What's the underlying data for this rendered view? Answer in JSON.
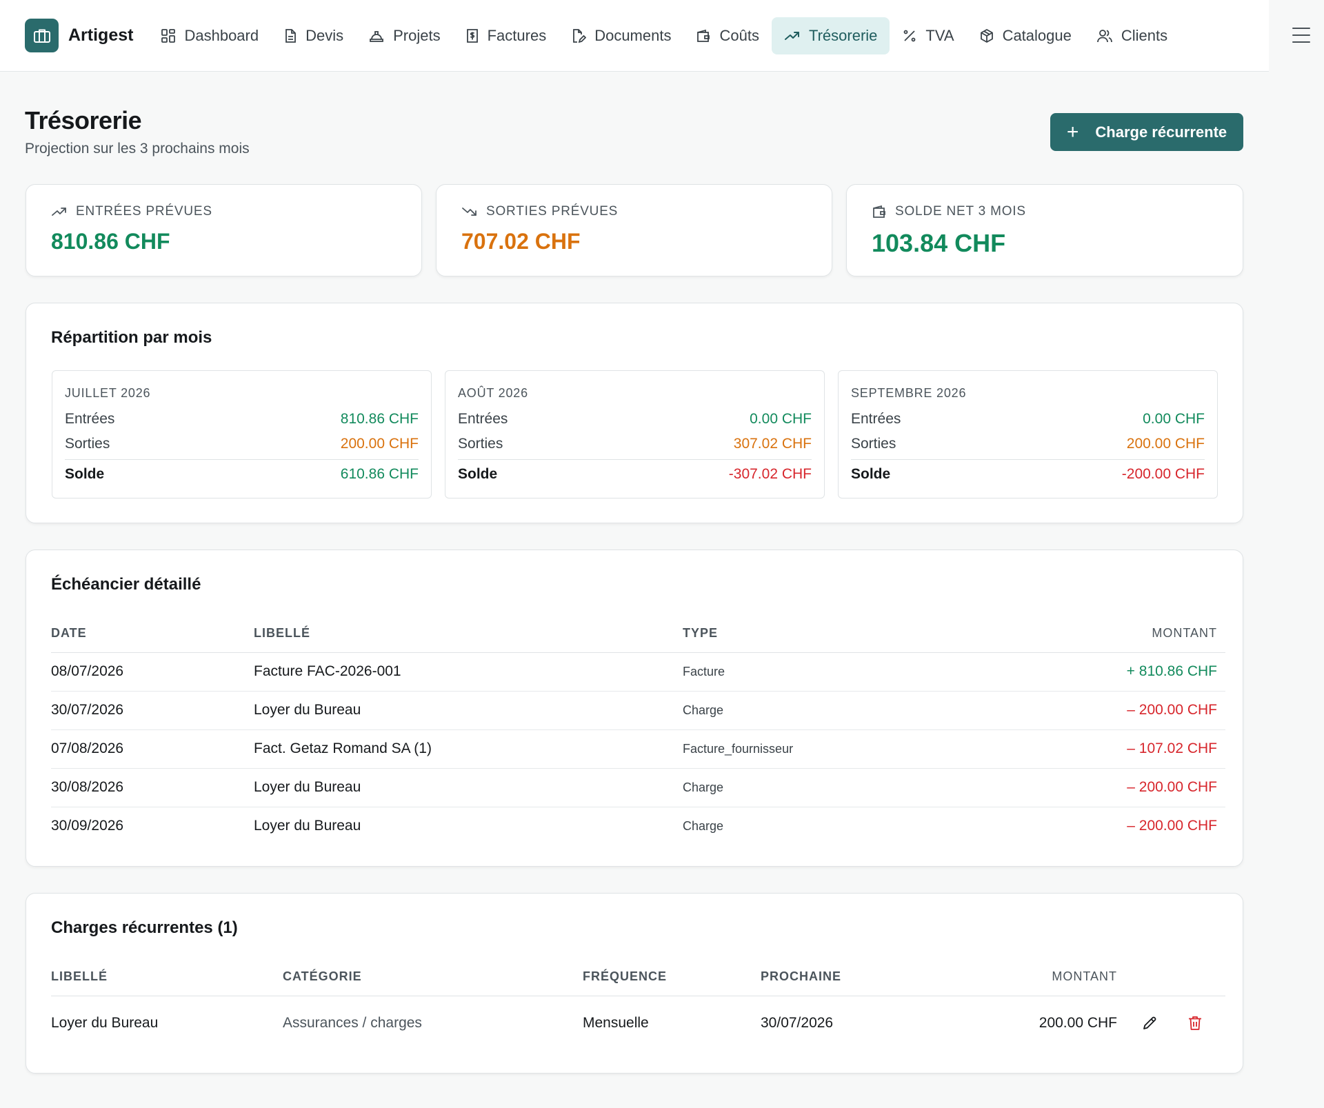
{
  "app": {
    "name": "Artigest",
    "logo_icon": "briefcase-icon"
  },
  "nav": {
    "items": [
      {
        "label": "Dashboard",
        "icon": "dashboard-grid-icon",
        "active": false
      },
      {
        "label": "Devis",
        "icon": "document-icon",
        "active": false
      },
      {
        "label": "Projets",
        "icon": "hard-hat-icon",
        "active": false
      },
      {
        "label": "Factures",
        "icon": "invoice-dollar-icon",
        "active": false
      },
      {
        "label": "Documents",
        "icon": "document-edit-icon",
        "active": false
      },
      {
        "label": "Coûts",
        "icon": "wallet-icon",
        "active": false
      },
      {
        "label": "Trésorerie",
        "icon": "trending-up-icon",
        "active": true
      },
      {
        "label": "TVA",
        "icon": "percent-icon",
        "active": false
      },
      {
        "label": "Catalogue",
        "icon": "package-icon",
        "active": false
      },
      {
        "label": "Clients",
        "icon": "users-icon",
        "active": false
      }
    ],
    "menu_icon": "hamburger-menu-icon"
  },
  "header": {
    "title": "Trésorerie",
    "subtitle": "Projection sur les 3 prochains mois",
    "add_button_label": "Charge récurrente",
    "add_button_icon": "plus-icon"
  },
  "stats": {
    "entrees": {
      "label": "ENTRÉES PRÉVUES",
      "value": "810.86 CHF",
      "icon": "trending-up-icon",
      "color": "#128a5c"
    },
    "sorties": {
      "label": "SORTIES PRÉVUES",
      "value": "707.02 CHF",
      "icon": "trending-down-icon",
      "color": "#d9720e"
    },
    "solde": {
      "label": "SOLDE NET 3 MOIS",
      "value": "103.84 CHF",
      "icon": "wallet-icon",
      "color": "#128a5c"
    }
  },
  "monthly": {
    "title": "Répartition par mois",
    "row_labels": {
      "entrees": "Entrées",
      "sorties": "Sorties",
      "solde": "Solde"
    },
    "months": [
      {
        "name": "JUILLET 2026",
        "entrees": "810.86 CHF",
        "sorties": "200.00 CHF",
        "solde": "610.86 CHF",
        "solde_color": "#128a5c"
      },
      {
        "name": "AOÛT 2026",
        "entrees": "0.00 CHF",
        "sorties": "307.02 CHF",
        "solde": "-307.02 CHF",
        "solde_color": "#d7262c"
      },
      {
        "name": "SEPTEMBRE 2026",
        "entrees": "0.00 CHF",
        "sorties": "200.00 CHF",
        "solde": "-200.00 CHF",
        "solde_color": "#d7262c"
      }
    ]
  },
  "schedule": {
    "title": "Échéancier détaillé",
    "columns": {
      "date": "DATE",
      "libelle": "LIBELLÉ",
      "type": "TYPE",
      "montant": "MONTANT"
    },
    "rows": [
      {
        "date": "08/07/2026",
        "libelle": "Facture FAC-2026-001",
        "type": "Facture",
        "montant": "+ 810.86 CHF",
        "color": "#128a5c"
      },
      {
        "date": "30/07/2026",
        "libelle": "Loyer du Bureau",
        "type": "Charge",
        "montant": "– 200.00 CHF",
        "color": "#d7262c"
      },
      {
        "date": "07/08/2026",
        "libelle": "Fact. Getaz Romand SA (1)",
        "type": "Facture_fournisseur",
        "montant": "– 107.02 CHF",
        "color": "#d7262c"
      },
      {
        "date": "30/08/2026",
        "libelle": "Loyer du Bureau",
        "type": "Charge",
        "montant": "– 200.00 CHF",
        "color": "#d7262c"
      },
      {
        "date": "30/09/2026",
        "libelle": "Loyer du Bureau",
        "type": "Charge",
        "montant": "– 200.00 CHF",
        "color": "#d7262c"
      }
    ]
  },
  "recurring": {
    "title": "Charges récurrentes (1)",
    "columns": {
      "libelle": "LIBELLÉ",
      "categorie": "CATÉGORIE",
      "frequence": "FRÉQUENCE",
      "prochaine": "PROCHAINE",
      "montant": "MONTANT"
    },
    "rows": [
      {
        "libelle": "Loyer du Bureau",
        "categorie": "Assurances / charges",
        "frequence": "Mensuelle",
        "prochaine": "30/07/2026",
        "montant": "200.00 CHF",
        "edit_icon": "pencil-icon",
        "delete_icon": "trash-icon"
      }
    ]
  },
  "colors": {
    "brand": "#2a6b6c",
    "active_nav_bg": "#dff0f0",
    "positive": "#128a5c",
    "warning": "#d9720e",
    "negative": "#d7262c"
  }
}
